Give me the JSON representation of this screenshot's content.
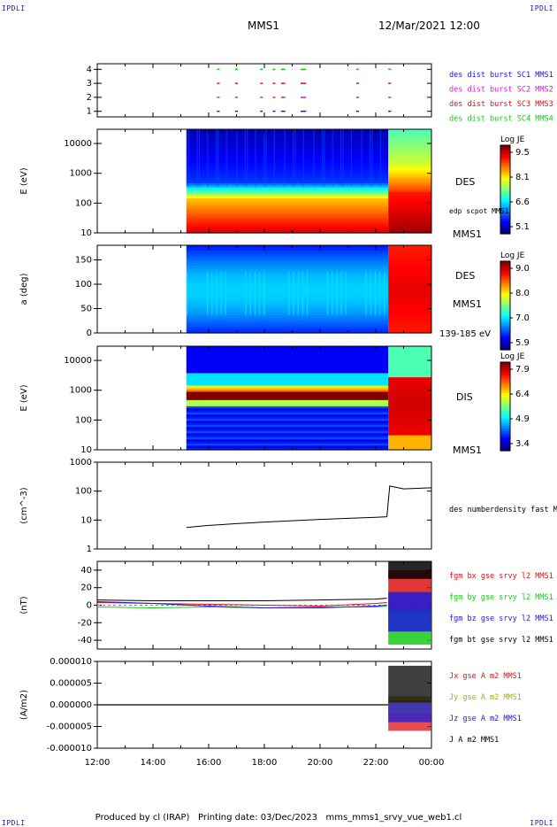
{
  "corner_tag": "IPDLI",
  "header": {
    "spacecraft": "MMS1",
    "datetime": "12/Mar/2021 12:00"
  },
  "footer": {
    "text": "Produced by cl (IRAP)   Printing date: 03/Dec/2023   mms_mms1_srvy_vue_web1.cl"
  },
  "chart_data": [
    {
      "type": "scatter",
      "id": "burst",
      "yticks": [
        "1",
        "2",
        "3",
        "4"
      ],
      "ylim": [
        0.6,
        4.4
      ],
      "xlim": [
        0,
        12
      ],
      "xticks": [
        "12:00",
        "14:00",
        "16:00",
        "18:00",
        "20:00",
        "22:00",
        "00:00"
      ],
      "legend": [
        {
          "label": "des dist burst SC1 MMS1",
          "color": "#1a1adc"
        },
        {
          "label": "des dist burst SC2 MMS2",
          "color": "#d21ad2"
        },
        {
          "label": "des dist burst SC3 MMS3",
          "color": "#dc1414"
        },
        {
          "label": "des dist burst SC4 MMS4",
          "color": "#1ac81a"
        }
      ],
      "intervals_hours": [
        [
          4.3,
          4.35
        ],
        [
          4.95,
          5.0
        ],
        [
          5.85,
          5.9
        ],
        [
          6.3,
          6.36
        ],
        [
          6.6,
          6.75
        ],
        [
          7.3,
          7.5
        ],
        [
          9.3,
          9.35
        ],
        [
          10.45,
          10.55
        ]
      ]
    },
    {
      "type": "heatmap",
      "id": "des_energy",
      "ylabel": "E (eV)",
      "ylog": true,
      "ylim": [
        10,
        30000
      ],
      "yticks": [
        "10",
        "100",
        "1000",
        "10000"
      ],
      "data_start_hour": 3.2,
      "change_hour": 10.45,
      "colorbar": {
        "title": "Log JE",
        "ticks": [
          "9.5",
          "8.1",
          "6.6",
          "5.1"
        ]
      },
      "labels": [
        "DES",
        "edp scpot MMS1",
        "MMS1"
      ]
    },
    {
      "type": "heatmap",
      "id": "des_pitch",
      "ylabel": "a (deg)",
      "ylim": [
        0,
        180
      ],
      "yticks": [
        "0",
        "50",
        "100",
        "150"
      ],
      "colorbar": {
        "title": "Log JE",
        "ticks": [
          "9.0",
          "8.0",
          "7.0",
          "5.9"
        ]
      },
      "labels": [
        "DES",
        "MMS1",
        "139-185 eV"
      ]
    },
    {
      "type": "heatmap",
      "id": "dis_energy",
      "ylabel": "E (eV)",
      "ylog": true,
      "ylim": [
        10,
        30000
      ],
      "yticks": [
        "10",
        "100",
        "1000",
        "10000"
      ],
      "colorbar": {
        "title": "Log JE",
        "ticks": [
          "7.9",
          "6.4",
          "4.9",
          "3.4"
        ]
      },
      "labels": [
        "DIS",
        "MMS1"
      ]
    },
    {
      "type": "line",
      "id": "density",
      "ylabel": "(cm^-3)",
      "ylog": true,
      "ylim": [
        1,
        1000
      ],
      "yticks": [
        "1",
        "10",
        "100",
        "1000"
      ],
      "series": [
        {
          "name": "des numberdensity fast M",
          "color": "#000000",
          "x": [
            3.2,
            4.0,
            5.0,
            6.0,
            7.0,
            8.0,
            9.0,
            10.0,
            10.4,
            10.5,
            11.0,
            12.0
          ],
          "y": [
            5.5,
            6.5,
            7.5,
            8.5,
            9.5,
            10.5,
            11.5,
            12.5,
            13,
            150,
            120,
            130
          ]
        }
      ]
    },
    {
      "type": "line",
      "id": "fgm",
      "ylabel": "(nT)",
      "ylim": [
        -50,
        50
      ],
      "yticks": [
        "-40",
        "-20",
        "0",
        "20",
        "40"
      ],
      "series": [
        {
          "name": "fgm bx gse srvy l2 MMS1",
          "color": "#dc1414",
          "x": [
            0,
            2,
            4,
            6,
            8,
            10,
            10.4
          ],
          "y": [
            3,
            2,
            1,
            0,
            -1,
            2,
            3
          ]
        },
        {
          "name": "fgm by gse srvy l2 MMS1",
          "color": "#1ac81a",
          "x": [
            0,
            2,
            4,
            6,
            8,
            10,
            10.4
          ],
          "y": [
            -2,
            -3,
            -2,
            -3,
            -2,
            -2,
            -1
          ]
        },
        {
          "name": "fgm bz gse srvy l2 MMS1",
          "color": "#1a1adc",
          "x": [
            0,
            2,
            4,
            6,
            8,
            10,
            10.4
          ],
          "y": [
            4,
            2,
            -1,
            -3,
            -3,
            -1,
            0
          ]
        },
        {
          "name": "fgm bt gse srvy l2 MMS1",
          "color": "#000000",
          "x": [
            0,
            2,
            4,
            6,
            8,
            10,
            10.4
          ],
          "y": [
            6,
            5,
            5,
            5,
            6,
            7,
            8
          ]
        }
      ]
    },
    {
      "type": "line",
      "id": "current",
      "ylabel": "(A/m2)",
      "ylim": [
        -1e-05,
        1e-05
      ],
      "yticks": [
        "-0.000010",
        "-0.000005",
        "0.000000",
        "0.000005",
        "0.000010"
      ],
      "series": [
        {
          "name": "Jx gse A m2 MMS1",
          "color": "#dc1414"
        },
        {
          "name": "Jy gse A m2 MMS1",
          "color": "#aaaa1a"
        },
        {
          "name": "Jz gse A m2 MMS1",
          "color": "#1a1adc"
        },
        {
          "name": "J A m2 MMS1",
          "color": "#000000"
        }
      ]
    }
  ]
}
